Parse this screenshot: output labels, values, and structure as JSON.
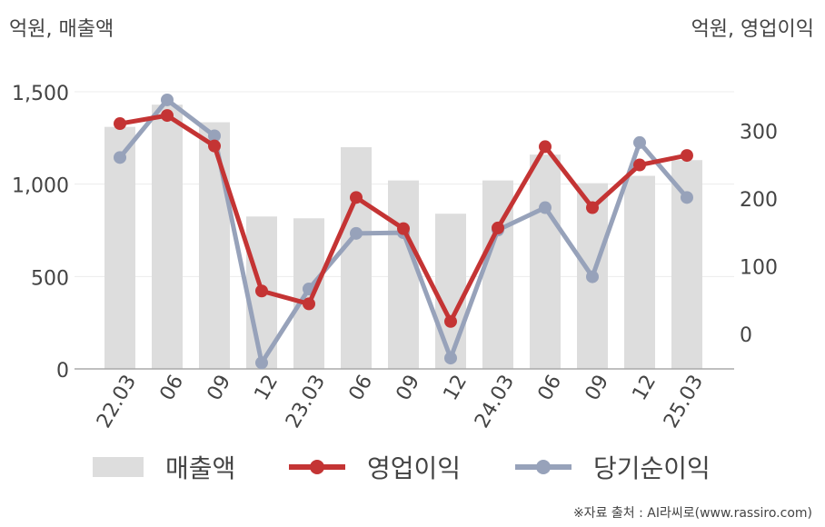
{
  "unit_left": "억원, 매출액",
  "unit_right": "억원, 영업이익",
  "source": "※자료 출처 : AI라씨로(www.rassiro.com)",
  "chart_data": {
    "type": "bar+line",
    "categories": [
      "22.03",
      "06",
      "09",
      "12",
      "23.03",
      "06",
      "09",
      "12",
      "24.03",
      "06",
      "09",
      "12",
      "25.03"
    ],
    "left_axis": {
      "ticks": [
        "0",
        "500",
        "1,000",
        "1,500"
      ],
      "tick_values": [
        0,
        500,
        1000,
        1500
      ],
      "range": [
        0,
        1500
      ]
    },
    "right_axis": {
      "ticks": [
        "0",
        "100",
        "200",
        "300"
      ],
      "tick_values": [
        0,
        100,
        200,
        300
      ],
      "range": [
        -52,
        357
      ]
    },
    "grid": true,
    "legend_position": "bottom",
    "series": [
      {
        "name": "매출액",
        "kind": "bar",
        "axis": "left",
        "color": "#dddddd",
        "values": [
          1310,
          1430,
          1335,
          825,
          815,
          1200,
          1020,
          840,
          1020,
          1160,
          1005,
          1045,
          1130
        ]
      },
      {
        "name": "영업이익",
        "kind": "line",
        "axis": "right",
        "color": "#c43434",
        "values": [
          310,
          322,
          277,
          63,
          44,
          201,
          155,
          18,
          156,
          276,
          186,
          249,
          263
        ]
      },
      {
        "name": "당기순이익",
        "kind": "line",
        "axis": "right",
        "color": "#97a2ba",
        "values": [
          260,
          345,
          292,
          -43,
          66,
          148,
          149,
          -36,
          153,
          186,
          84,
          282,
          201
        ]
      }
    ]
  }
}
